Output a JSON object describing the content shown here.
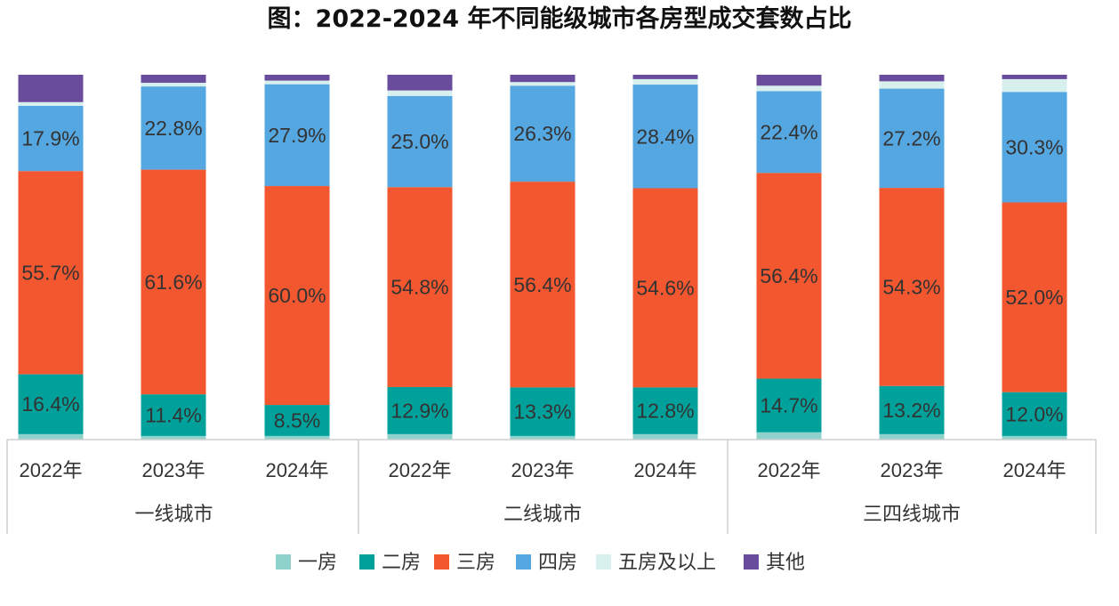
{
  "chart_data": {
    "type": "bar",
    "stacked": true,
    "normalized": true,
    "title": "图：2022-2024 年不同能级城市各房型成交套数占比",
    "groups": [
      {
        "name": "一线城市",
        "categories": [
          "2022年",
          "2023年",
          "2024年"
        ]
      },
      {
        "name": "二线城市",
        "categories": [
          "2022年",
          "2023年",
          "2024年"
        ]
      },
      {
        "name": "三四线城市",
        "categories": [
          "2022年",
          "2023年",
          "2024年"
        ]
      }
    ],
    "series": [
      {
        "name": "一房",
        "color": "#8fd1cb",
        "values": [
          1.5,
          1.0,
          1.0,
          1.5,
          1.0,
          1.5,
          2.0,
          1.5,
          1.0
        ],
        "labels": [
          "",
          "",
          "",
          "",
          "",
          "",
          "",
          "",
          ""
        ]
      },
      {
        "name": "二房",
        "color": "#00a19a",
        "values": [
          16.4,
          11.4,
          8.5,
          12.9,
          13.3,
          12.8,
          14.7,
          13.2,
          12.0
        ],
        "labels": [
          "16.4%",
          "11.4%",
          "8.5%",
          "12.9%",
          "13.3%",
          "12.8%",
          "14.7%",
          "13.2%",
          "12.0%"
        ]
      },
      {
        "name": "三房",
        "color": "#f2572f",
        "values": [
          55.7,
          61.6,
          60.0,
          54.8,
          56.4,
          54.6,
          56.4,
          54.3,
          52.0
        ],
        "labels": [
          "55.7%",
          "61.6%",
          "60.0%",
          "54.8%",
          "56.4%",
          "54.6%",
          "56.4%",
          "54.3%",
          "52.0%"
        ]
      },
      {
        "name": "四房",
        "color": "#55a7e1",
        "values": [
          17.9,
          22.8,
          27.9,
          25.0,
          26.3,
          28.4,
          22.4,
          27.2,
          30.3
        ],
        "labels": [
          "17.9%",
          "22.8%",
          "27.9%",
          "25.0%",
          "26.3%",
          "28.4%",
          "22.4%",
          "27.2%",
          "30.3%"
        ]
      },
      {
        "name": "五房及以上",
        "color": "#d7f0ee",
        "values": [
          1.0,
          1.0,
          1.0,
          1.5,
          1.0,
          1.5,
          1.5,
          2.0,
          3.5
        ],
        "labels": [
          "",
          "",
          "",
          "",
          "",
          "",
          "",
          "",
          ""
        ]
      },
      {
        "name": "其他",
        "color": "#6a4c9c",
        "values": [
          7.5,
          2.2,
          1.6,
          4.3,
          2.0,
          1.2,
          3.0,
          1.8,
          1.2
        ],
        "labels": [
          "",
          "",
          "",
          "",
          "",
          "",
          "",
          "",
          ""
        ]
      }
    ],
    "ylim": [
      0,
      100
    ],
    "legend_position": "bottom",
    "grid": false
  }
}
